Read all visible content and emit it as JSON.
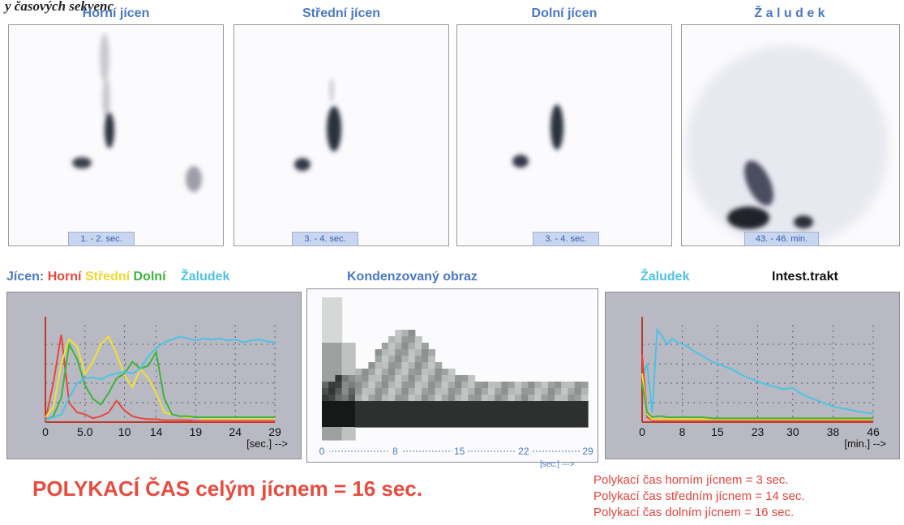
{
  "caption": "y časových sekvenc",
  "images": [
    {
      "title": "Horní jícen",
      "time": "1. - 2. sec."
    },
    {
      "title": "Střední jícen",
      "time": "3. - 4. sec."
    },
    {
      "title": "Dolní jícen",
      "time": "3. - 4. sec."
    },
    {
      "title": "Ž a l u d e k",
      "time": "43. - 46. min."
    }
  ],
  "legend": {
    "prefix": "Jícen:",
    "upper": "Horní",
    "middle": "Střední",
    "lower": "Dolní",
    "stomach": "Žaludek"
  },
  "condensed_title": "Kondenzovaný obraz",
  "right_legend": {
    "stomach": "Žaludek",
    "intestine": "Intest.trakt"
  },
  "colors": {
    "upper": "#e8473a",
    "middle": "#f2e22e",
    "lower": "#3db43b",
    "stomach": "#4cc3e6",
    "title_blue": "#4a78c8",
    "result_red": "#e84b3f"
  },
  "result": {
    "main": "POLYKACÍ ČAS celým jícnem =   16 sec.",
    "lines": [
      "Polykací čas horním jícnem  = 3 sec.",
      "Polykací čas středním jícnem  = 14 sec.",
      "Polykací čas dolním jícnem  = 16 sec."
    ]
  },
  "chart_data": [
    {
      "type": "line",
      "x_ticks": [
        "0",
        "5.0",
        "10",
        "14",
        "19",
        "24",
        "29"
      ],
      "x_unit": "[sec.] -->",
      "xlim": [
        0,
        29
      ],
      "ylim": [
        0,
        100
      ],
      "x": [
        0,
        1,
        2,
        3,
        4,
        5,
        6,
        7,
        8,
        9,
        10,
        11,
        12,
        13,
        14,
        15,
        16,
        17,
        18,
        19,
        20,
        21,
        22,
        23,
        24,
        25,
        26,
        27,
        28,
        29
      ],
      "series": [
        {
          "color_key": "upper",
          "values": [
            2,
            40,
            90,
            20,
            10,
            8,
            4,
            6,
            10,
            22,
            12,
            6,
            4,
            3,
            3,
            2,
            2,
            2,
            2,
            1,
            1,
            1,
            1,
            1,
            1,
            1,
            1,
            1,
            1,
            1
          ]
        },
        {
          "color_key": "middle",
          "values": [
            5,
            15,
            60,
            85,
            78,
            50,
            62,
            80,
            88,
            70,
            48,
            36,
            55,
            45,
            30,
            10,
            8,
            6,
            5,
            5,
            4,
            4,
            4,
            4,
            4,
            4,
            4,
            4,
            4,
            4
          ]
        },
        {
          "color_key": "lower",
          "values": [
            2,
            6,
            25,
            80,
            65,
            38,
            24,
            18,
            30,
            45,
            50,
            62,
            55,
            58,
            72,
            25,
            8,
            6,
            6,
            5,
            5,
            5,
            5,
            5,
            5,
            5,
            5,
            5,
            5,
            5
          ]
        },
        {
          "color_key": "stomach",
          "values": [
            2,
            5,
            8,
            25,
            40,
            45,
            46,
            44,
            48,
            50,
            52,
            50,
            55,
            68,
            76,
            82,
            85,
            88,
            86,
            84,
            86,
            85,
            86,
            84,
            85,
            82,
            84,
            85,
            83,
            82
          ]
        }
      ]
    },
    {
      "type": "heatmap",
      "x_ticks": [
        "0",
        "8",
        "15",
        "22",
        "29"
      ],
      "x_unit": "[sec.] --->",
      "xlim": [
        0,
        29
      ]
    },
    {
      "type": "line",
      "x_ticks": [
        "0",
        "8",
        "15",
        "23",
        "30",
        "38",
        "46"
      ],
      "x_unit": "[min.] -->",
      "xlim": [
        0,
        46
      ],
      "ylim": [
        0,
        100
      ],
      "x": [
        0,
        1,
        2,
        3,
        4,
        5,
        6,
        7,
        8,
        9,
        10,
        12,
        14,
        16,
        18,
        20,
        22,
        24,
        26,
        28,
        30,
        32,
        34,
        36,
        38,
        40,
        42,
        44,
        46
      ],
      "series": [
        {
          "color_key": "stomach",
          "values": [
            45,
            60,
            10,
            95,
            88,
            80,
            86,
            82,
            80,
            78,
            74,
            68,
            62,
            58,
            54,
            48,
            44,
            40,
            37,
            34,
            35,
            28,
            24,
            20,
            16,
            14,
            12,
            10,
            9
          ]
        },
        {
          "color_key": "upper",
          "values": [
            70,
            5,
            2,
            2,
            2,
            2,
            2,
            2,
            2,
            2,
            2,
            2,
            2,
            2,
            2,
            2,
            2,
            2,
            2,
            2,
            2,
            2,
            2,
            2,
            2,
            2,
            2,
            2,
            2
          ]
        },
        {
          "color_key": "middle",
          "values": [
            50,
            8,
            3,
            3,
            3,
            3,
            3,
            3,
            3,
            3,
            3,
            3,
            3,
            3,
            3,
            3,
            3,
            3,
            3,
            3,
            3,
            3,
            3,
            3,
            3,
            3,
            3,
            3,
            3
          ]
        },
        {
          "color_key": "lower",
          "values": [
            40,
            10,
            5,
            6,
            6,
            5,
            5,
            5,
            5,
            5,
            5,
            5,
            4,
            4,
            4,
            4,
            4,
            4,
            4,
            4,
            4,
            4,
            4,
            4,
            4,
            4,
            4,
            4,
            4
          ]
        }
      ]
    }
  ]
}
